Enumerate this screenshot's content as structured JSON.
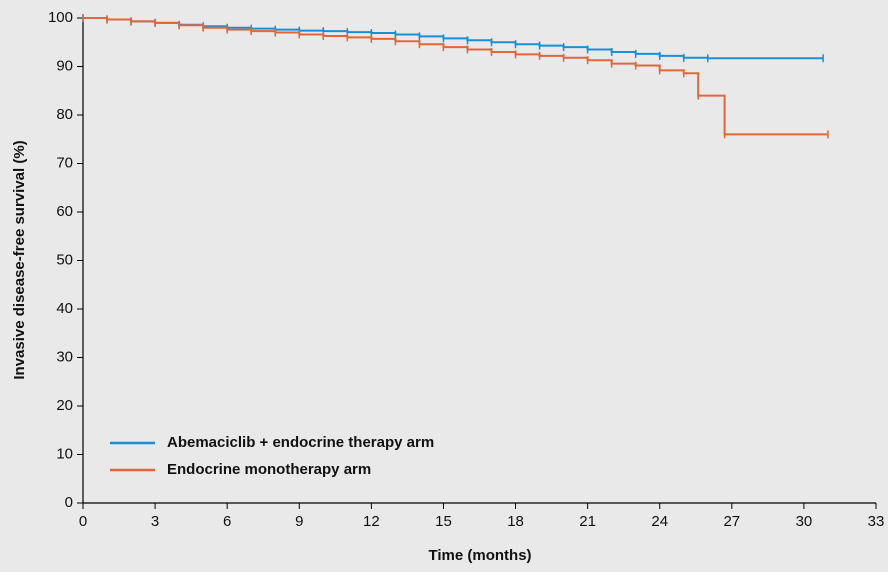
{
  "chart_data": {
    "type": "step",
    "xlabel": "Time (months)",
    "ylabel": "Invasive disease-free survival (%)",
    "xlim": [
      0,
      33
    ],
    "ylim": [
      0,
      100
    ],
    "xticks": [
      0,
      3,
      6,
      9,
      12,
      15,
      18,
      21,
      24,
      27,
      30,
      33
    ],
    "yticks": [
      0,
      10,
      20,
      30,
      40,
      50,
      60,
      70,
      80,
      90,
      100
    ],
    "legend": "lower left",
    "series": [
      {
        "name": "Abemaciclib + endocrine therapy arm",
        "color": "#1a8fd6",
        "x": [
          0,
          1,
          2,
          3,
          4,
          5,
          6,
          7,
          8,
          9,
          10,
          11,
          12,
          13,
          14,
          15,
          16,
          17,
          18,
          19,
          20,
          21,
          22,
          23,
          24,
          25,
          26,
          30.8
        ],
        "values": [
          100,
          99.7,
          99.3,
          99,
          98.6,
          98.3,
          98,
          97.8,
          97.6,
          97.4,
          97.3,
          97.1,
          96.9,
          96.6,
          96.2,
          95.8,
          95.4,
          95,
          94.6,
          94.3,
          94,
          93.5,
          93,
          92.6,
          92.2,
          91.8,
          91.7,
          91.7
        ]
      },
      {
        "name": "Endocrine monotherapy arm",
        "color": "#e0673a",
        "x": [
          0,
          1,
          2,
          3,
          4,
          5,
          6,
          7,
          8,
          9,
          10,
          11,
          12,
          13,
          14,
          15,
          16,
          17,
          18,
          19,
          20,
          21,
          22,
          23,
          24,
          25,
          25.6,
          26.7,
          31
        ],
        "values": [
          100,
          99.7,
          99.3,
          99,
          98.5,
          98,
          97.6,
          97.3,
          97,
          96.6,
          96.3,
          96,
          95.7,
          95.2,
          94.6,
          94,
          93.5,
          93,
          92.5,
          92.2,
          91.8,
          91.3,
          90.6,
          90.2,
          89.2,
          88.6,
          84,
          76,
          76
        ]
      }
    ]
  }
}
